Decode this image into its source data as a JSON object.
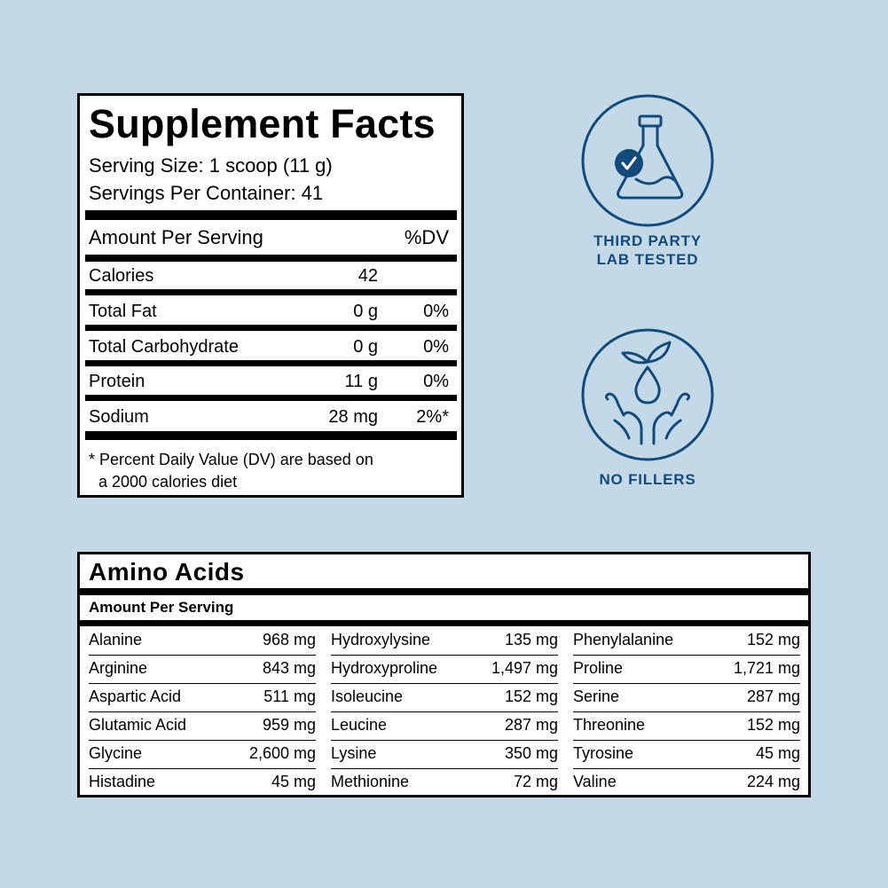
{
  "supplement_facts": {
    "title": "Supplement Facts",
    "serving_size": "Serving Size: 1 scoop (11 g)",
    "servings_per_container": "Servings Per Container: 41",
    "header": {
      "label": "Amount Per Serving",
      "dv": "%DV"
    },
    "rows": [
      {
        "name": "Calories",
        "amount": "42",
        "dv": ""
      },
      {
        "name": "Total Fat",
        "amount": "0 g",
        "dv": "0%"
      },
      {
        "name": "Total Carbohydrate",
        "amount": "0 g",
        "dv": "0%"
      },
      {
        "name": "Protein",
        "amount": "11 g",
        "dv": "0%"
      },
      {
        "name": "Sodium",
        "amount": "28 mg",
        "dv": "2%*"
      }
    ],
    "footnote_1": "* Percent Daily Value (DV) are based on",
    "footnote_2": "a 2000 calories diet"
  },
  "badges": [
    {
      "icon": "flask-check-icon",
      "line1": "THIRD PARTY",
      "line2": "LAB TESTED"
    },
    {
      "icon": "hands-drop-leaf-icon",
      "line1": "NO FILLERS"
    }
  ],
  "colors": {
    "background": "#c3d9e7",
    "accent": "#134a7c"
  },
  "amino_acids": {
    "title": "Amino Acids",
    "subtitle": "Amount Per Serving",
    "columns": [
      [
        {
          "name": "Alanine",
          "value": "968 mg"
        },
        {
          "name": "Arginine",
          "value": "843 mg"
        },
        {
          "name": "Aspartic Acid",
          "value": "511 mg"
        },
        {
          "name": "Glutamic Acid",
          "value": "959 mg"
        },
        {
          "name": "Glycine",
          "value": "2,600 mg"
        },
        {
          "name": "Histadine",
          "value": "45 mg"
        }
      ],
      [
        {
          "name": "Hydroxylysine",
          "value": "135 mg"
        },
        {
          "name": "Hydroxyproline",
          "value": "1,497 mg"
        },
        {
          "name": "Isoleucine",
          "value": "152 mg"
        },
        {
          "name": "Leucine",
          "value": "287 mg"
        },
        {
          "name": "Lysine",
          "value": "350 mg"
        },
        {
          "name": "Methionine",
          "value": "72 mg"
        }
      ],
      [
        {
          "name": "Phenylalanine",
          "value": "152 mg"
        },
        {
          "name": "Proline",
          "value": "1,721 mg"
        },
        {
          "name": "Serine",
          "value": "287 mg"
        },
        {
          "name": "Threonine",
          "value": "152 mg"
        },
        {
          "name": "Tyrosine",
          "value": "45 mg"
        },
        {
          "name": "Valine",
          "value": "224 mg"
        }
      ]
    ]
  }
}
